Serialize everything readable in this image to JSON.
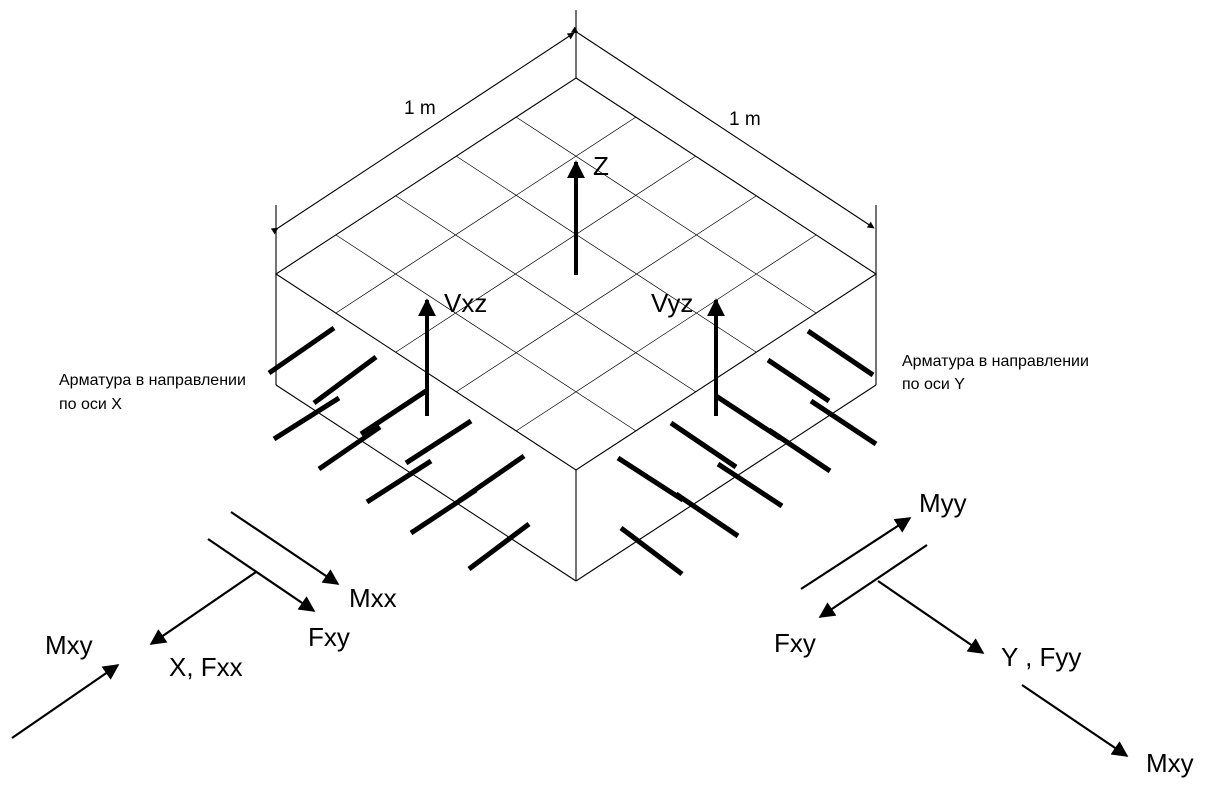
{
  "labels": {
    "z": "Z",
    "vxz": "Vxz",
    "vyz": "Vyz",
    "dim_left": "1 m",
    "dim_right": "1 m",
    "rebar_x_line1": "Арматура  в  направлении",
    "rebar_x_line2": "по оси X",
    "rebar_y_line1": "Арматура  в  направлении",
    "rebar_y_line2": "по оси Y",
    "mxx": "Mxx",
    "fxy_left": "Fxy",
    "mxy_left": "Mxy",
    "x_fxx": "X, Fxx",
    "myy": "Myy",
    "fxy_right": "Fxy",
    "y_fyy": "Y , Fyy",
    "mxy_right": "Mxy"
  }
}
